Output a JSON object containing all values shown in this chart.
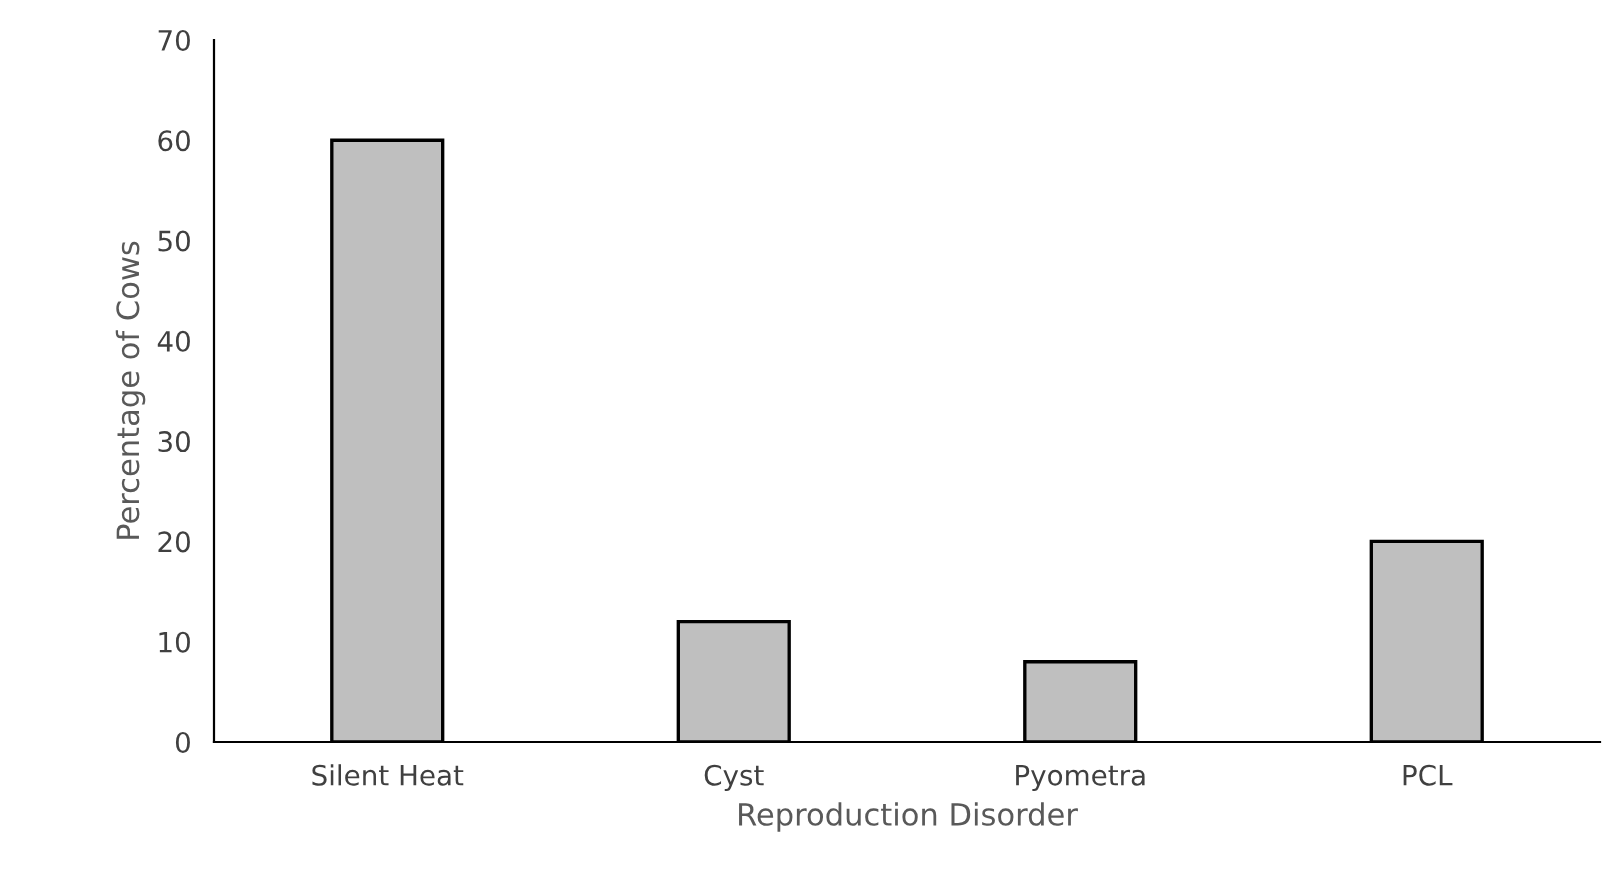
{
  "chart_data": {
    "type": "bar",
    "xlabel": "Reproduction Disorder",
    "ylabel": "Percentage of Cows",
    "categories": [
      "Silent Heat",
      "Cyst",
      "Pyometra",
      "PCL"
    ],
    "values": [
      60,
      12,
      8,
      20
    ],
    "color": "#bfbfbf",
    "ylim": [
      0,
      70
    ],
    "yticks": [
      0,
      10,
      20,
      30,
      40,
      50,
      60,
      70
    ],
    "grid": false,
    "legend": false
  }
}
